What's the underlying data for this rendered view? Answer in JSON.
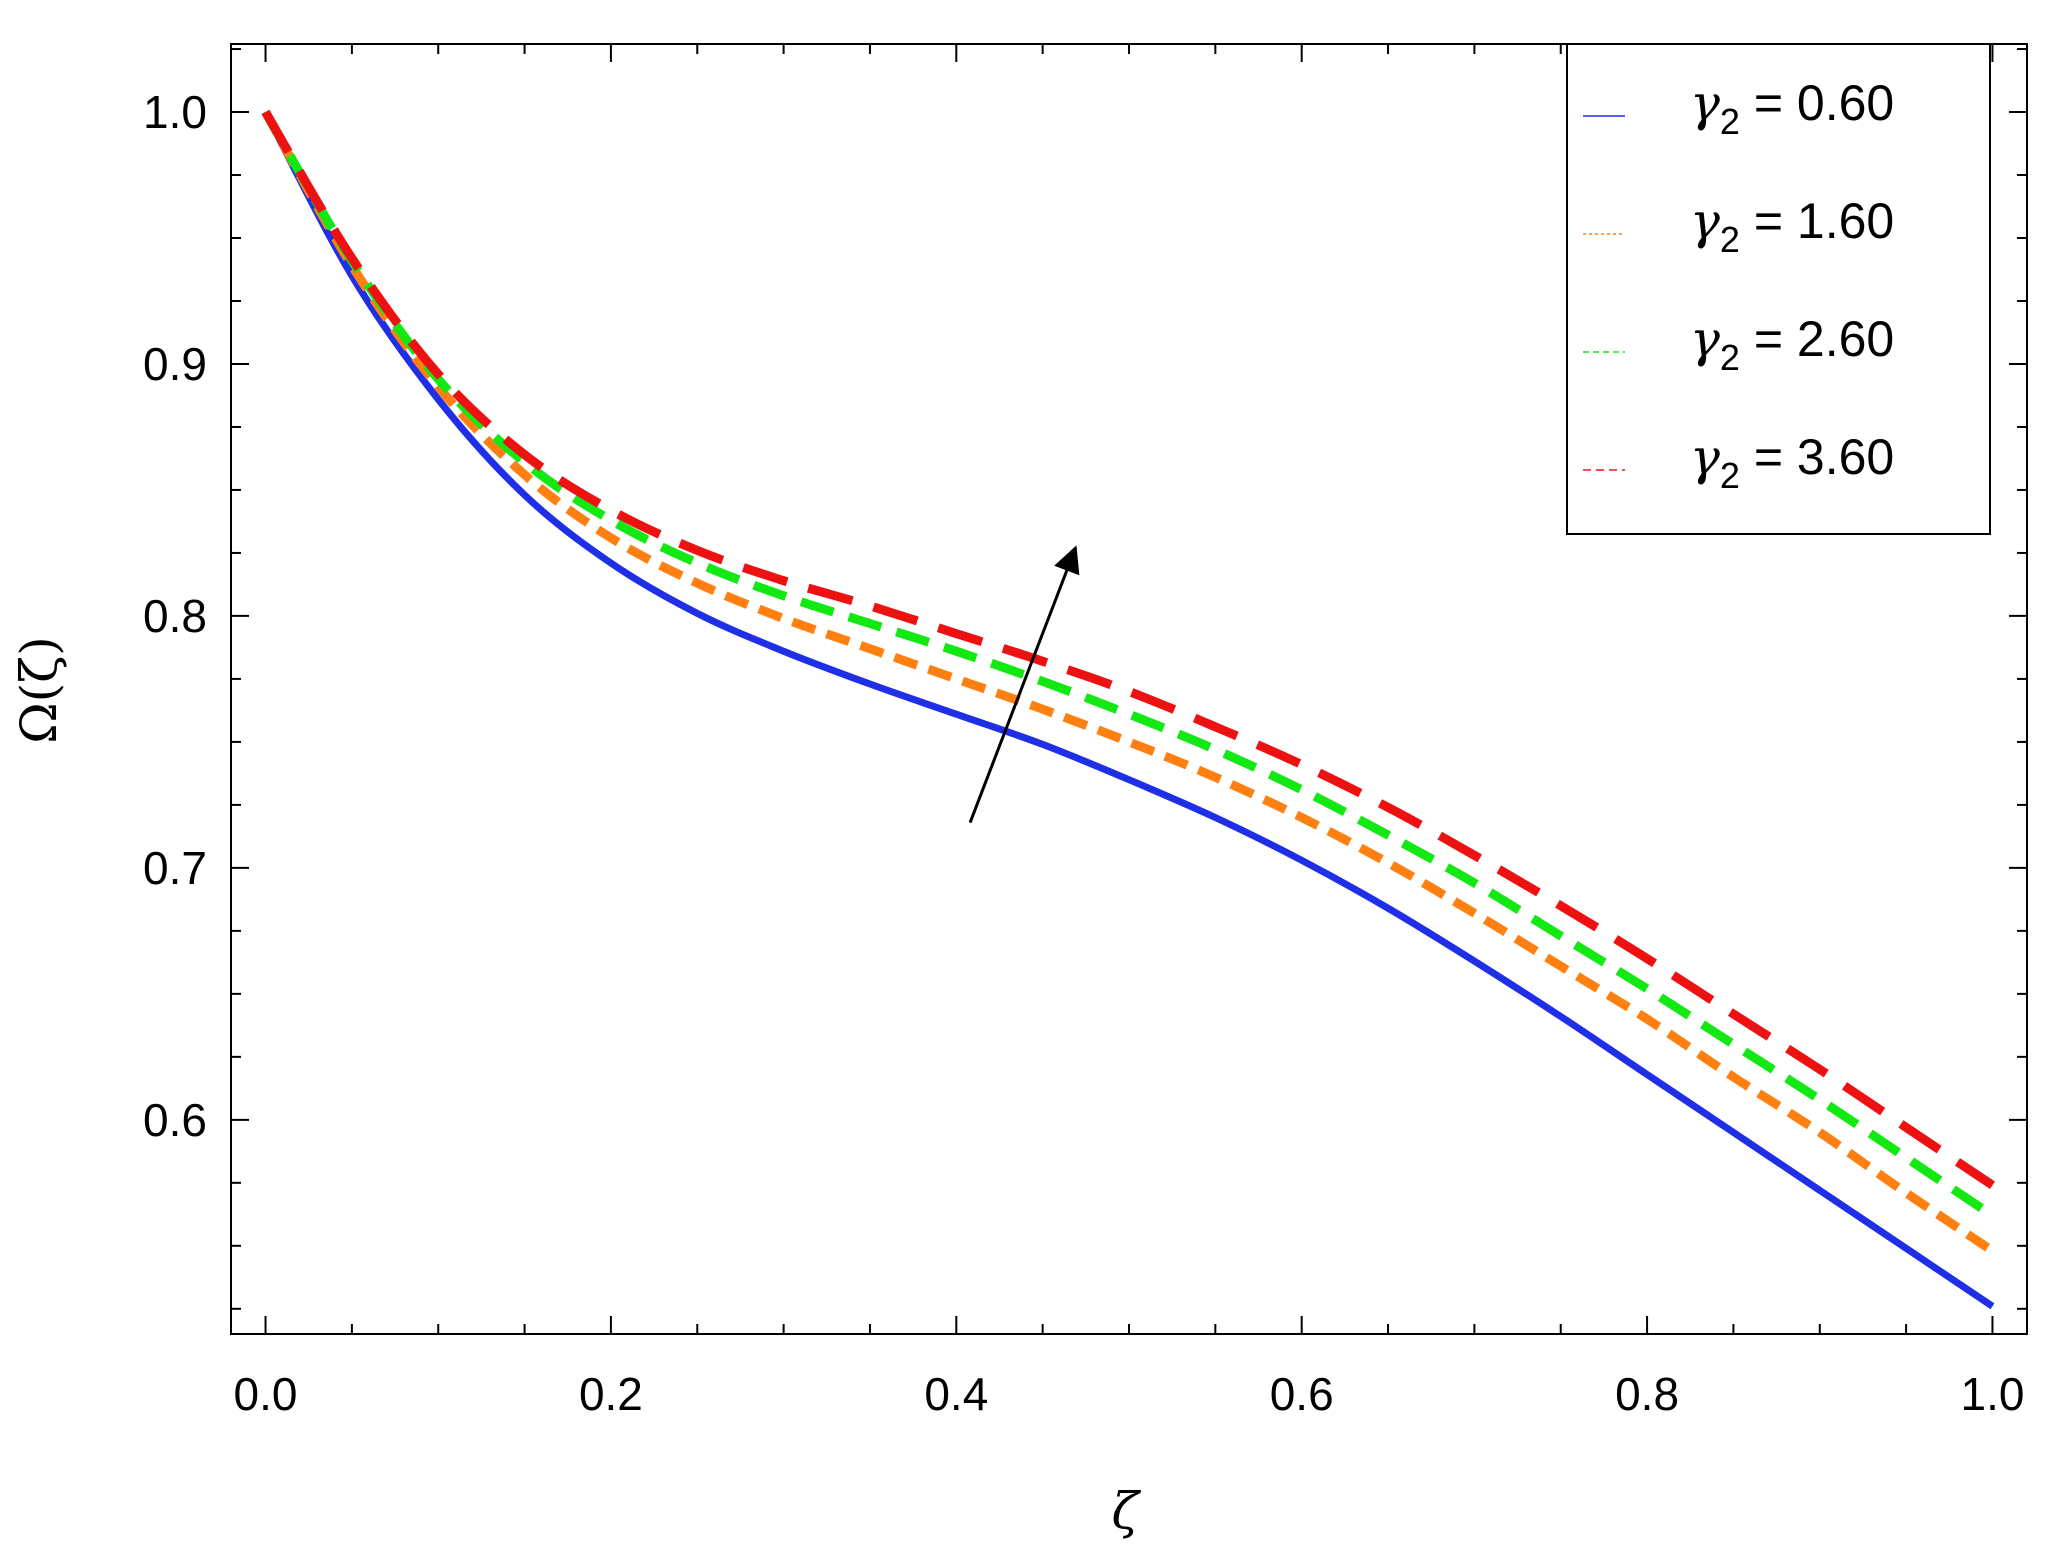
{
  "chart_data": {
    "type": "line",
    "xlabel": "ζ",
    "ylabel": "Ω(ζ)",
    "xlim": [
      -0.02,
      1.02
    ],
    "ylim": [
      0.515,
      1.027
    ],
    "xticks": [
      0.0,
      0.2,
      0.4,
      0.6,
      0.8,
      1.0
    ],
    "xtick_labels": [
      "0.0",
      "0.2",
      "0.4",
      "0.6",
      "0.8",
      "1.0"
    ],
    "yticks": [
      0.6,
      0.7,
      0.8,
      0.9,
      1.0
    ],
    "ytick_labels": [
      "0.6",
      "0.7",
      "0.8",
      "0.9",
      "1.0"
    ],
    "grid": false,
    "legend_position": "top-right",
    "x": [
      0.0,
      0.05,
      0.1,
      0.15,
      0.2,
      0.25,
      0.3,
      0.35,
      0.4,
      0.45,
      0.5,
      0.55,
      0.6,
      0.65,
      0.7,
      0.75,
      0.8,
      0.85,
      0.9,
      0.95,
      1.0
    ],
    "series": [
      {
        "name": "γ2 = 0.60",
        "legend_param": "γ",
        "legend_sub": "2",
        "legend_value": " = 0.60",
        "color": "#1f2fe8",
        "style": "solid",
        "values": [
          1.0,
          0.935,
          0.886,
          0.848,
          0.821,
          0.801,
          0.786,
          0.773,
          0.761,
          0.749,
          0.735,
          0.72,
          0.703,
          0.684,
          0.663,
          0.641,
          0.618,
          0.595,
          0.572,
          0.549,
          0.526
        ]
      },
      {
        "name": "γ2 = 1.60",
        "legend_param": "γ",
        "legend_sub": "2",
        "legend_value": " = 1.60",
        "color": "#ff8010",
        "style": "dotted",
        "values": [
          1.0,
          0.939,
          0.891,
          0.856,
          0.831,
          0.813,
          0.799,
          0.787,
          0.775,
          0.763,
          0.75,
          0.736,
          0.72,
          0.702,
          0.682,
          0.661,
          0.64,
          0.617,
          0.595,
          0.571,
          0.548
        ]
      },
      {
        "name": "γ2 = 2.60",
        "legend_param": "γ",
        "legend_sub": "2",
        "legend_value": " = 2.60",
        "color": "#12e812",
        "style": "dashed",
        "values": [
          1.0,
          0.941,
          0.894,
          0.861,
          0.838,
          0.821,
          0.808,
          0.797,
          0.786,
          0.774,
          0.761,
          0.747,
          0.731,
          0.713,
          0.694,
          0.673,
          0.652,
          0.63,
          0.608,
          0.585,
          0.562
        ]
      },
      {
        "name": "γ2 = 3.60",
        "legend_param": "γ",
        "legend_sub": "2",
        "legend_value": " = 3.60",
        "color": "#ee1111",
        "style": "longdash",
        "values": [
          1.0,
          0.942,
          0.896,
          0.864,
          0.842,
          0.826,
          0.814,
          0.804,
          0.793,
          0.782,
          0.77,
          0.756,
          0.741,
          0.724,
          0.705,
          0.685,
          0.664,
          0.642,
          0.62,
          0.597,
          0.574
        ]
      }
    ],
    "annotation": {
      "type": "arrow",
      "from": [
        0.408,
        0.718
      ],
      "to": [
        0.469,
        0.827
      ]
    }
  }
}
